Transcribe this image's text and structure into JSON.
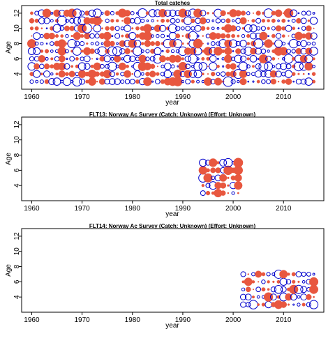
{
  "chart_data": [
    {
      "type": "scatter",
      "title": "Total catches",
      "xlabel": "year",
      "ylabel": "Age",
      "xlim": [
        1958,
        2018
      ],
      "ylim": [
        2,
        13
      ],
      "xticks": [
        1960,
        1970,
        1980,
        1990,
        2000,
        2010
      ],
      "yticks": [
        4,
        6,
        8,
        10,
        12
      ],
      "colors": {
        "positive": "#e8573f",
        "negative": "#0000cc"
      },
      "years": [
        1960,
        2016
      ],
      "ages": [
        3,
        12
      ],
      "seed": 7,
      "grid": false
    },
    {
      "type": "scatter",
      "title": "FLT13: Norway Ac Survey (Catch: Unknown) (Effort: Unknown)",
      "xlabel": "year",
      "ylabel": "Age",
      "xlim": [
        1958,
        2018
      ],
      "ylim": [
        2,
        13
      ],
      "xticks": [
        1960,
        1970,
        1980,
        1990,
        2000,
        2010
      ],
      "yticks": [
        4,
        6,
        8,
        10,
        12
      ],
      "colors": {
        "positive": "#e8573f",
        "negative": "#0000cc"
      },
      "years": [
        1994,
        2001
      ],
      "ages": [
        3,
        7
      ],
      "seed": 13,
      "grid": false
    },
    {
      "type": "scatter",
      "title": "FLT14: Norway Ac Survey (Catch: Unknown) (Effort: Unknown)",
      "xlabel": "year",
      "ylabel": "Age",
      "xlim": [
        1958,
        2018
      ],
      "ylim": [
        2,
        13
      ],
      "xticks": [
        1960,
        1970,
        1980,
        1990,
        2000,
        2010
      ],
      "yticks": [
        4,
        6,
        8,
        10,
        12
      ],
      "colors": {
        "positive": "#e8573f",
        "negative": "#0000cc"
      },
      "years": [
        2002,
        2016
      ],
      "ages": [
        3,
        7
      ],
      "seed": 21,
      "grid": false
    }
  ]
}
